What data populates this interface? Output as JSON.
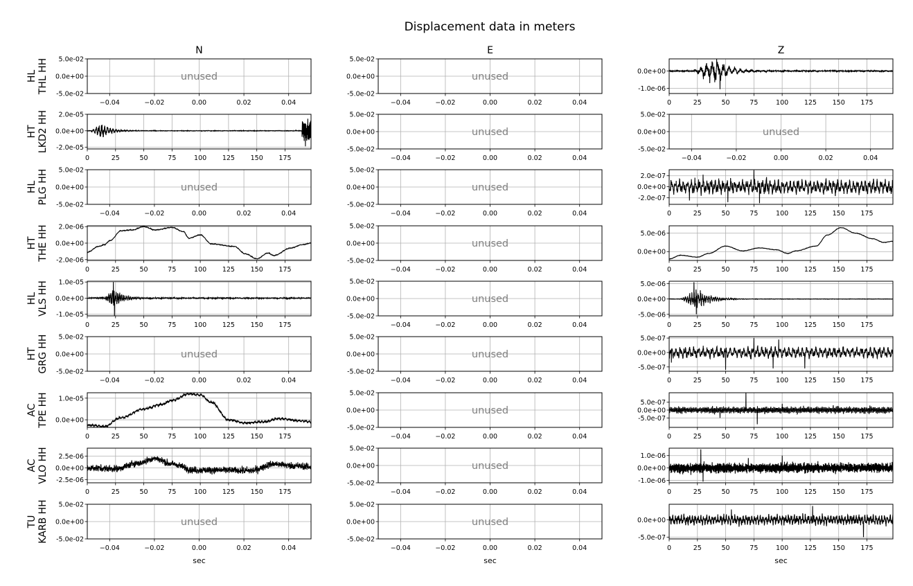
{
  "figure": {
    "title": "Displacement data in meters",
    "columns": [
      "N",
      "E",
      "Z"
    ],
    "xlabel": "sec",
    "unused_text": "unused"
  },
  "chart_data": {
    "type": "line",
    "grid": true,
    "title": "Displacement data in meters",
    "xlabel": "sec",
    "columns": [
      "N",
      "E",
      "Z"
    ],
    "unused_panel": {
      "text": "unused",
      "xlim": [
        -0.05,
        0.05
      ],
      "xticks": [
        -0.04,
        -0.02,
        0.0,
        0.02,
        0.04
      ],
      "xtick_labels": [
        "−0.04",
        "−0.02",
        "0.00",
        "0.02",
        "0.04"
      ],
      "ylim": [
        -0.05,
        0.05
      ],
      "yticks": [
        0.05,
        0.0,
        -0.05
      ],
      "ytick_labels": [
        "5.0e-02",
        "0.0e+00",
        "-5.0e-02"
      ]
    },
    "time_axis": {
      "xlim": [
        0,
        198
      ],
      "xticks": [
        0,
        25,
        50,
        75,
        100,
        125,
        150,
        175
      ],
      "xtick_labels": [
        "0",
        "25",
        "50",
        "75",
        "100",
        "125",
        "150",
        "175"
      ]
    },
    "rows": [
      {
        "net": "HL",
        "sta": "THL HH",
        "panels": [
          {
            "used": false
          },
          {
            "used": false
          },
          {
            "used": true,
            "kind": "event",
            "ylim": [
              -1.3e-06,
              7e-07
            ],
            "yticks": [
              0,
              -1e-06
            ],
            "ytick_labels": [
              "0.0e+00",
              "-1.0e-06"
            ],
            "features": {
              "base": 0,
              "noise": 3e-08,
              "onset": 20,
              "peak_t": 40,
              "amp": 6.5e-07,
              "decay": 14,
              "period": 5,
              "spikes": [
                [
                  42,
                  7e-07
                ],
                [
                  45,
                  -1.05e-06
                ],
                [
                  38,
                  5.5e-07
                ]
              ]
            }
          }
        ]
      },
      {
        "net": "HT",
        "sta": "LKD2 HH",
        "panels": [
          {
            "used": true,
            "kind": "event",
            "ylim": [
              -2.2e-05,
              2e-05
            ],
            "yticks": [
              2e-05,
              0,
              -2e-05
            ],
            "ytick_labels": [
              "2.0e-05",
              "0.0e+00",
              "-2.0e-05"
            ],
            "features": {
              "base": 0,
              "noise": 3e-07,
              "onset": 3,
              "peak_t": 12,
              "amp": 1e-05,
              "decay": 8,
              "period": 2.5,
              "burst2": {
                "t0": 190,
                "t1": 198,
                "amp": 1.8e-05
              }
            }
          },
          {
            "used": false
          },
          {
            "used": false
          }
        ]
      },
      {
        "net": "HL",
        "sta": "PLG HH",
        "panels": [
          {
            "used": false
          },
          {
            "used": false
          },
          {
            "used": true,
            "kind": "noise",
            "ylim": [
              -3.2e-07,
              3.1e-07
            ],
            "yticks": [
              2e-07,
              0,
              -2e-07
            ],
            "ytick_labels": [
              "2.0e-07",
              "0.0e+00",
              "-2.0e-07"
            ],
            "features": {
              "base": 0,
              "amp": 1.2e-07,
              "period": 3.5,
              "spikes": [
                [
                  30,
                  2.2e-07
                ],
                [
                  52,
                  -2.8e-07
                ],
                [
                  75,
                  3e-07
                ],
                [
                  80,
                  -3e-07
                ],
                [
                  18,
                  -2.5e-07
                ]
              ]
            }
          }
        ]
      },
      {
        "net": "HT",
        "sta": "THE HH",
        "panels": [
          {
            "used": true,
            "kind": "drift",
            "ylim": [
              -2.1e-06,
              2.1e-06
            ],
            "yticks": [
              2e-06,
              0,
              -2e-06
            ],
            "ytick_labels": [
              "2.0e-06",
              "0.0e+00",
              "-2.0e-06"
            ],
            "features": {
              "noise": 5e-08,
              "knots": [
                [
                  0,
                  -1.1e-06
                ],
                [
                  10,
                  -4e-07
                ],
                [
                  15,
                  -2e-07
                ],
                [
                  20,
                  3e-07
                ],
                [
                  30,
                  1.5e-06
                ],
                [
                  40,
                  1.6e-06
                ],
                [
                  50,
                  2e-06
                ],
                [
                  60,
                  1.6e-06
                ],
                [
                  75,
                  1.9e-06
                ],
                [
                  85,
                  1.4e-06
                ],
                [
                  90,
                  6e-07
                ],
                [
                  100,
                  1e-06
                ],
                [
                  110,
                  -1e-07
                ],
                [
                  130,
                  -4e-07
                ],
                [
                  140,
                  -1.3e-06
                ],
                [
                  150,
                  -1.9e-06
                ],
                [
                  160,
                  -1.2e-06
                ],
                [
                  165,
                  -1.5e-06
                ],
                [
                  180,
                  -6e-07
                ],
                [
                  190,
                  -2e-07
                ],
                [
                  198,
                  0.0
                ]
              ]
            }
          },
          {
            "used": false
          },
          {
            "used": true,
            "kind": "drift",
            "ylim": [
              -2.4e-06,
              7e-06
            ],
            "yticks": [
              5e-06,
              0
            ],
            "ytick_labels": [
              "5.0e-06",
              "0.0e+00"
            ],
            "features": {
              "noise": 6e-08,
              "knots": [
                [
                  0,
                  -2e-06
                ],
                [
                  10,
                  -1e-06
                ],
                [
                  25,
                  -1.5e-06
                ],
                [
                  35,
                  -5e-07
                ],
                [
                  50,
                  1.5e-06
                ],
                [
                  65,
                  2e-07
                ],
                [
                  80,
                  1e-06
                ],
                [
                  95,
                  5e-07
                ],
                [
                  105,
                  -5e-07
                ],
                [
                  112,
                  2e-07
                ],
                [
                  130,
                  1.5e-06
                ],
                [
                  140,
                  4.5e-06
                ],
                [
                  152,
                  6.5e-06
                ],
                [
                  165,
                  5e-06
                ],
                [
                  180,
                  3.5e-06
                ],
                [
                  190,
                  2.5e-06
                ],
                [
                  198,
                  2.8e-06
                ]
              ]
            }
          }
        ]
      },
      {
        "net": "HL",
        "sta": "VLS HH",
        "panels": [
          {
            "used": true,
            "kind": "event",
            "ylim": [
              -1.1e-05,
              1.05e-05
            ],
            "yticks": [
              1e-05,
              0,
              -1e-05
            ],
            "ytick_labels": [
              "1.0e-05",
              "0.0e+00",
              "-1.0e-05"
            ],
            "features": {
              "base": 0,
              "noise": 3e-07,
              "onset": 15,
              "peak_t": 23,
              "amp": 6e-06,
              "decay": 9,
              "period": 1.6,
              "spikes": [
                [
                  23,
                  1e-05
                ],
                [
                  24,
                  -1.1e-05
                ]
              ]
            }
          },
          {
            "used": false
          },
          {
            "used": true,
            "kind": "event",
            "ylim": [
              -5.5e-06,
              5.8e-06
            ],
            "yticks": [
              5e-06,
              0,
              -5e-06
            ],
            "ytick_labels": [
              "5.0e-06",
              "0.0e+00",
              "-5.0e-06"
            ],
            "features": {
              "base": 0,
              "noise": 5e-08,
              "onset": 10,
              "peak_t": 25,
              "amp": 3.2e-06,
              "decay": 11,
              "period": 1.9,
              "spikes": [
                [
                  22,
                  5.5e-06
                ],
                [
                  24,
                  -5e-06
                ]
              ]
            }
          }
        ]
      },
      {
        "net": "HT",
        "sta": "GRG HH",
        "panels": [
          {
            "used": false
          },
          {
            "used": false
          },
          {
            "used": true,
            "kind": "noise",
            "ylim": [
              -6.5e-07,
              5.5e-07
            ],
            "yticks": [
              5e-07,
              0,
              -5e-07
            ],
            "ytick_labels": [
              "5.0e-07",
              "0.0e+00",
              "-5.0e-07"
            ],
            "features": {
              "base": 0,
              "amp": 1.8e-07,
              "period": 4,
              "spikes": [
                [
                  2,
                  -3.5e-07
                ],
                [
                  50,
                  -6e-07
                ],
                [
                  75,
                  5e-07
                ],
                [
                  92,
                  -5.5e-07
                ],
                [
                  97,
                  4.5e-07
                ],
                [
                  120,
                  -5.5e-07
                ]
              ]
            }
          }
        ]
      },
      {
        "net": "AC",
        "sta": "TPE HH",
        "panels": [
          {
            "used": true,
            "kind": "drift",
            "ylim": [
              -3.5e-06,
              1.25e-05
            ],
            "yticks": [
              1e-05,
              0
            ],
            "ytick_labels": [
              "1.0e-05",
              "0.0e+00"
            ],
            "features": {
              "noise": 6e-07,
              "knots": [
                [
                  0,
                  -2.5e-06
                ],
                [
                  15,
                  -3e-06
                ],
                [
                  30,
                  1e-06
                ],
                [
                  50,
                  5e-06
                ],
                [
                  65,
                  7e-06
                ],
                [
                  75,
                  9e-06
                ],
                [
                  90,
                  1.2e-05
                ],
                [
                  100,
                  1.15e-05
                ],
                [
                  110,
                  8e-06
                ],
                [
                  125,
                  0.0
                ],
                [
                  140,
                  -1.5e-06
                ],
                [
                  155,
                  -1e-06
                ],
                [
                  170,
                  5e-07
                ],
                [
                  190,
                  -5e-07
                ],
                [
                  198,
                  -1e-06
                ]
              ]
            }
          },
          {
            "used": false
          },
          {
            "used": true,
            "kind": "noise",
            "ylim": [
              -1.1e-06,
              1.1e-06
            ],
            "yticks": [
              5e-07,
              0,
              -5e-07
            ],
            "ytick_labels": [
              "5.0e-07",
              "0.0e+00",
              "-5.0e-07"
            ],
            "features": {
              "base": 0,
              "amp": 2e-07,
              "period": 1.2,
              "spikes": [
                [
                  68,
                  1.1e-06
                ],
                [
                  78,
                  -9e-07
                ],
                [
                  45,
                  -5e-07
                ],
                [
                  100,
                  4e-07
                ]
              ]
            }
          }
        ]
      },
      {
        "net": "AC",
        "sta": "VLO HH",
        "panels": [
          {
            "used": true,
            "kind": "noisy_drift",
            "ylim": [
              -3.2e-06,
              4.2e-06
            ],
            "yticks": [
              2.5e-06,
              0,
              -2.5e-06
            ],
            "ytick_labels": [
              "2.5e-06",
              "0.0e+00",
              "-2.5e-06"
            ],
            "features": {
              "amp": 8e-07,
              "knots": [
                [
                  0,
                  0.0
                ],
                [
                  25,
                  -2e-07
                ],
                [
                  45,
                  1e-06
                ],
                [
                  60,
                  2e-06
                ],
                [
                  75,
                  8e-07
                ],
                [
                  95,
                  -5e-07
                ],
                [
                  120,
                  -5e-07
                ],
                [
                  145,
                  -6e-07
                ],
                [
                  165,
                  8e-07
                ],
                [
                  185,
                  4e-07
                ],
                [
                  198,
                  2e-07
                ]
              ]
            }
          },
          {
            "used": false
          },
          {
            "used": true,
            "kind": "noise",
            "ylim": [
              -1.2e-06,
              1.6e-06
            ],
            "yticks": [
              1e-06,
              0,
              -1e-06
            ],
            "ytick_labels": [
              "1.0e-06",
              "0.0e+00",
              "-1.0e-06"
            ],
            "features": {
              "base": 0,
              "amp": 4e-07,
              "period": 0.8,
              "spikes": [
                [
                  28,
                  1.5e-06
                ],
                [
                  30,
                  -1.1e-06
                ],
                [
                  100,
                  1e-06
                ],
                [
                  70,
                  8e-07
                ]
              ]
            }
          }
        ]
      },
      {
        "net": "TU",
        "sta": "KARB HH",
        "panels": [
          {
            "used": false
          },
          {
            "used": false
          },
          {
            "used": true,
            "kind": "noise",
            "ylim": [
              -5.5e-07,
              4.5e-07
            ],
            "yticks": [
              0,
              -5e-07
            ],
            "ytick_labels": [
              "0.0e+00",
              "-5.0e-07"
            ],
            "features": {
              "base": 0,
              "amp": 1.4e-07,
              "period": 2.5,
              "spikes": [
                [
                  172,
                  -5e-07
                ],
                [
                  127,
                  4e-07
                ],
                [
                  55,
                  3e-07
                ]
              ]
            }
          }
        ]
      }
    ]
  }
}
